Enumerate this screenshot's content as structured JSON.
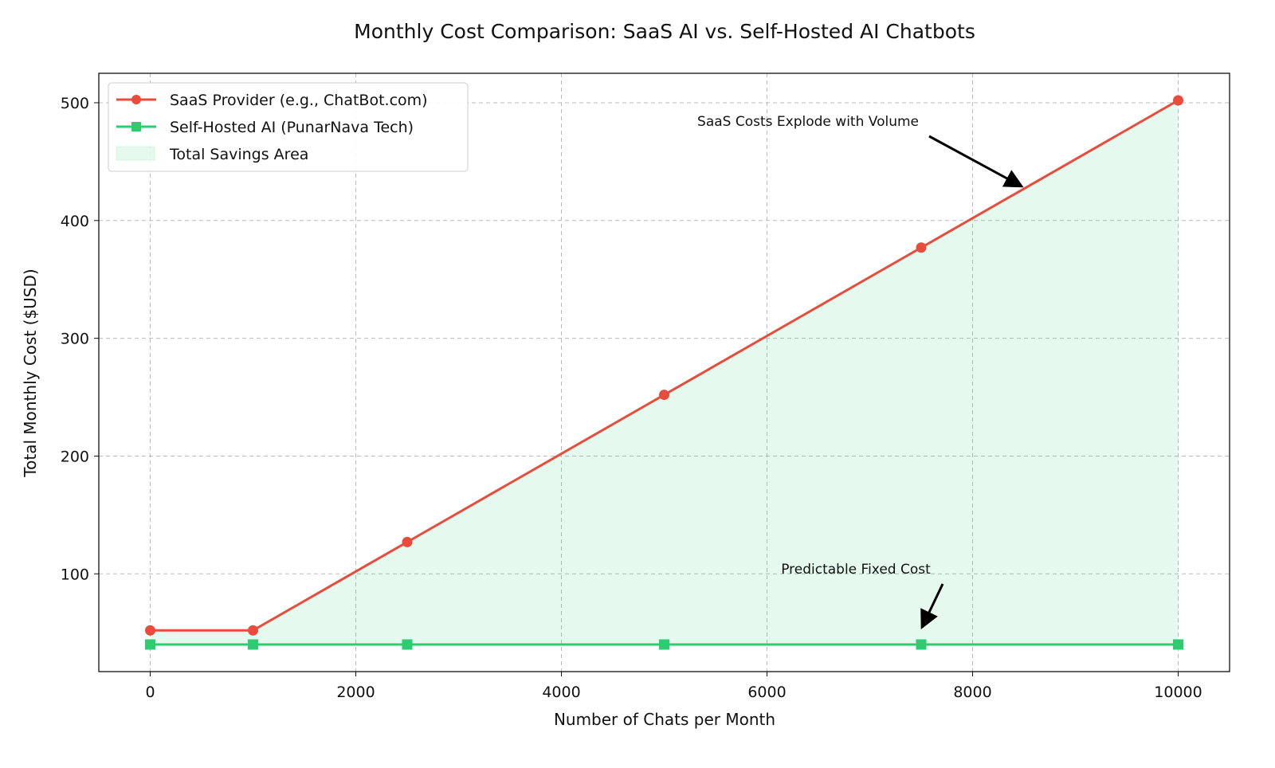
{
  "chart_data": {
    "type": "line",
    "title": "Monthly Cost Comparison: SaaS AI vs. Self-Hosted AI Chatbots",
    "xlabel": "Number of Chats per Month",
    "ylabel": "Total Monthly Cost ($USD)",
    "xlim": [
      -500,
      10500
    ],
    "ylim": [
      17,
      525
    ],
    "xticks": [
      0,
      2000,
      4000,
      6000,
      8000,
      10000
    ],
    "yticks": [
      100,
      200,
      300,
      400,
      500
    ],
    "grid": true,
    "legend_position": "top-left",
    "x": [
      0,
      1000,
      2500,
      5000,
      7500,
      10000
    ],
    "series": [
      {
        "name": "SaaS Provider (e.g., ChatBot.com)",
        "values": [
          52,
          52,
          127,
          252,
          377,
          502
        ],
        "color": "#e74c3c",
        "marker": "circle"
      },
      {
        "name": "Self-Hosted AI (PunarNava Tech)",
        "values": [
          40,
          40,
          40,
          40,
          40,
          40
        ],
        "color": "#2ecc71",
        "marker": "square"
      }
    ],
    "fill": {
      "name": "Total Savings Area",
      "color": "#2ecc71",
      "opacity": 0.12
    },
    "annotations": [
      {
        "text": "SaaS Costs Explode with Volume",
        "xy": [
          8500,
          427
        ],
        "xytext": [
          7500,
          475
        ]
      },
      {
        "text": "Predictable Fixed Cost",
        "xy": [
          7500,
          56
        ],
        "xytext": [
          7700,
          100
        ]
      }
    ]
  }
}
